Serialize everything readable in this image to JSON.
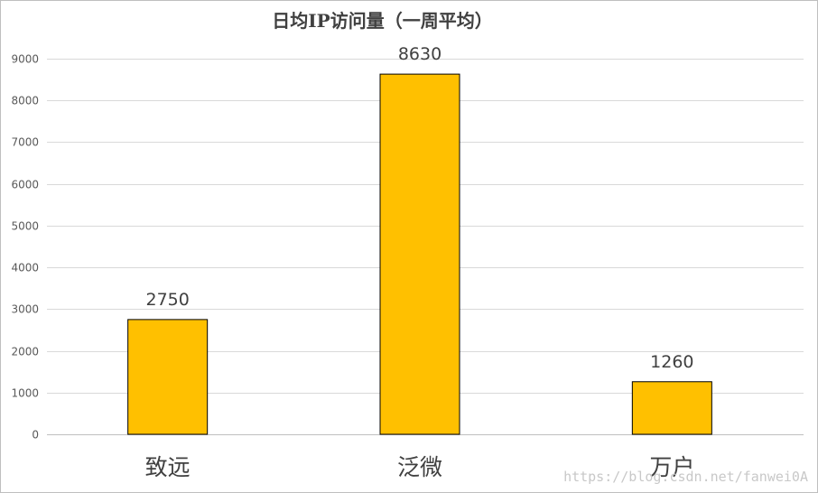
{
  "chart_data": {
    "type": "bar",
    "title": "日均IP访问量（一周平均）",
    "categories": [
      "致远",
      "泛微",
      "万户"
    ],
    "values": [
      2750,
      8630,
      1260
    ],
    "data_labels": [
      "2750",
      "8630",
      "1260"
    ],
    "ylim": [
      0,
      9000
    ],
    "yticks": [
      0,
      1000,
      2000,
      3000,
      4000,
      5000,
      6000,
      7000,
      8000,
      9000
    ],
    "grid": true,
    "bar_color": "#FFC000",
    "bar_outline": "#000000"
  },
  "watermark": "https://blog.csdn.net/fanwei0A"
}
